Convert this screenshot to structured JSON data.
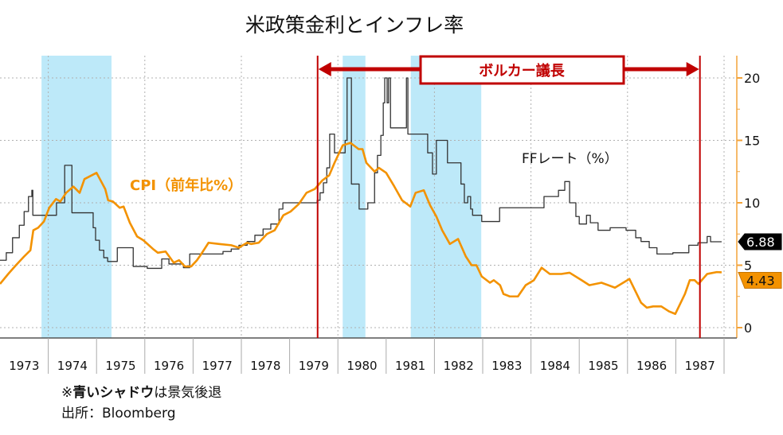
{
  "chart_data": {
    "type": "line",
    "title": "米政策金利とインフレ率",
    "xlabel": "",
    "ylabel": "",
    "xlim": [
      1973,
      1988
    ],
    "ylim": [
      -1,
      22
    ],
    "y_ticks": [
      0,
      5,
      10,
      15,
      20
    ],
    "x_tick_labels": [
      "1973",
      "1974",
      "1975",
      "1976",
      "1977",
      "1978",
      "1979",
      "1980",
      "1981",
      "1982",
      "1983",
      "1984",
      "1985",
      "1986",
      "1987"
    ],
    "y_axis_side": "right",
    "grid": true,
    "colors": {
      "ff": "#333333",
      "cpi": "#f39200",
      "recession": "#bde9f9",
      "volcker": "#c00000",
      "axis": "#f3a33a"
    },
    "recessions": [
      [
        1973.86,
        1975.31
      ],
      [
        1980.1,
        1980.57
      ],
      [
        1981.51,
        1982.97
      ]
    ],
    "volcker": {
      "label": "ボルカー議長",
      "start": 1979.58,
      "end": 1987.5
    },
    "series": [
      {
        "name": "FFレート（%）",
        "style": "step",
        "last_value_label": "6.88",
        "points": [
          [
            1973.0,
            5.4
          ],
          [
            1973.13,
            6.0
          ],
          [
            1973.26,
            7.2
          ],
          [
            1973.4,
            8.2
          ],
          [
            1973.5,
            9.3
          ],
          [
            1973.59,
            10.5
          ],
          [
            1973.66,
            11.0
          ],
          [
            1973.68,
            9.0
          ],
          [
            1974.17,
            10.0
          ],
          [
            1974.34,
            13.0
          ],
          [
            1974.49,
            9.2
          ],
          [
            1974.93,
            8.0
          ],
          [
            1974.98,
            7.0
          ],
          [
            1975.06,
            6.2
          ],
          [
            1975.15,
            5.6
          ],
          [
            1975.23,
            5.3
          ],
          [
            1975.43,
            6.4
          ],
          [
            1975.76,
            4.9
          ],
          [
            1976.05,
            4.75
          ],
          [
            1976.35,
            5.5
          ],
          [
            1976.5,
            5.1
          ],
          [
            1976.8,
            4.8
          ],
          [
            1976.93,
            5.9
          ],
          [
            1977.62,
            6.1
          ],
          [
            1977.79,
            6.3
          ],
          [
            1977.95,
            6.6
          ],
          [
            1978.12,
            6.9
          ],
          [
            1978.28,
            7.4
          ],
          [
            1978.45,
            7.9
          ],
          [
            1978.61,
            8.3
          ],
          [
            1978.78,
            9.5
          ],
          [
            1978.86,
            10.0
          ],
          [
            1979.57,
            10.2
          ],
          [
            1979.63,
            10.8
          ],
          [
            1979.7,
            11.6
          ],
          [
            1979.77,
            12.8
          ],
          [
            1979.83,
            15.5
          ],
          [
            1979.93,
            14.0
          ],
          [
            1980.15,
            15.0
          ],
          [
            1980.19,
            20.0
          ],
          [
            1980.28,
            11.5
          ],
          [
            1980.44,
            9.5
          ],
          [
            1980.62,
            10.0
          ],
          [
            1980.76,
            12.4
          ],
          [
            1980.82,
            13.8
          ],
          [
            1980.89,
            15.4
          ],
          [
            1980.94,
            18.0
          ],
          [
            1980.97,
            20.0
          ],
          [
            1981.02,
            18.0
          ],
          [
            1981.05,
            20.0
          ],
          [
            1981.09,
            16.0
          ],
          [
            1981.42,
            20.0
          ],
          [
            1981.45,
            15.5
          ],
          [
            1981.86,
            14.0
          ],
          [
            1981.96,
            12.3
          ],
          [
            1982.04,
            15.0
          ],
          [
            1982.27,
            13.2
          ],
          [
            1982.55,
            11.5
          ],
          [
            1982.62,
            10.0
          ],
          [
            1982.69,
            10.5
          ],
          [
            1982.75,
            9.5
          ],
          [
            1982.79,
            9.0
          ],
          [
            1982.98,
            8.5
          ],
          [
            1983.35,
            9.6
          ],
          [
            1984.27,
            10.5
          ],
          [
            1984.57,
            11.0
          ],
          [
            1984.7,
            11.7
          ],
          [
            1984.8,
            10.0
          ],
          [
            1984.93,
            8.9
          ],
          [
            1985.0,
            8.3
          ],
          [
            1985.15,
            9.0
          ],
          [
            1985.23,
            8.4
          ],
          [
            1985.39,
            7.8
          ],
          [
            1985.64,
            8.0
          ],
          [
            1985.97,
            7.8
          ],
          [
            1986.17,
            7.2
          ],
          [
            1986.28,
            6.9
          ],
          [
            1986.45,
            6.4
          ],
          [
            1986.61,
            5.9
          ],
          [
            1986.94,
            6.0
          ],
          [
            1987.27,
            6.6
          ],
          [
            1987.46,
            6.8
          ],
          [
            1987.65,
            7.3
          ],
          [
            1987.72,
            6.88
          ],
          [
            1987.95,
            6.88
          ]
        ]
      },
      {
        "name": "CPI（前年比%）",
        "style": "line",
        "last_value_label": "4.43",
        "points": [
          [
            1973.0,
            3.5
          ],
          [
            1973.17,
            4.3
          ],
          [
            1973.33,
            5.0
          ],
          [
            1973.5,
            5.7
          ],
          [
            1973.63,
            6.2
          ],
          [
            1973.69,
            7.8
          ],
          [
            1973.79,
            8.0
          ],
          [
            1973.91,
            8.5
          ],
          [
            1974.02,
            9.6
          ],
          [
            1974.16,
            10.3
          ],
          [
            1974.25,
            10.1
          ],
          [
            1974.37,
            10.8
          ],
          [
            1974.52,
            11.3
          ],
          [
            1974.65,
            10.8
          ],
          [
            1974.75,
            11.9
          ],
          [
            1975.0,
            12.4
          ],
          [
            1975.18,
            11.1
          ],
          [
            1975.24,
            10.2
          ],
          [
            1975.34,
            10.1
          ],
          [
            1975.48,
            9.6
          ],
          [
            1975.56,
            9.7
          ],
          [
            1975.69,
            8.4
          ],
          [
            1975.84,
            7.3
          ],
          [
            1975.97,
            7.0
          ],
          [
            1976.17,
            6.3
          ],
          [
            1976.27,
            6.0
          ],
          [
            1976.43,
            6.1
          ],
          [
            1976.6,
            5.2
          ],
          [
            1976.71,
            5.4
          ],
          [
            1976.83,
            4.9
          ],
          [
            1976.96,
            4.9
          ],
          [
            1977.08,
            5.4
          ],
          [
            1977.17,
            5.9
          ],
          [
            1977.32,
            6.8
          ],
          [
            1977.54,
            6.7
          ],
          [
            1977.79,
            6.6
          ],
          [
            1977.95,
            6.4
          ],
          [
            1978.03,
            6.6
          ],
          [
            1978.12,
            6.8
          ],
          [
            1978.2,
            6.7
          ],
          [
            1978.36,
            6.8
          ],
          [
            1978.53,
            7.5
          ],
          [
            1978.69,
            7.8
          ],
          [
            1978.87,
            9.0
          ],
          [
            1979.02,
            9.3
          ],
          [
            1979.19,
            9.9
          ],
          [
            1979.35,
            10.8
          ],
          [
            1979.52,
            11.1
          ],
          [
            1979.68,
            11.8
          ],
          [
            1979.82,
            12.2
          ],
          [
            1979.93,
            13.2
          ],
          [
            1980.1,
            14.6
          ],
          [
            1980.26,
            14.8
          ],
          [
            1980.43,
            14.3
          ],
          [
            1980.51,
            14.3
          ],
          [
            1980.59,
            13.2
          ],
          [
            1980.76,
            12.5
          ],
          [
            1980.85,
            12.8
          ],
          [
            1981.0,
            12.4
          ],
          [
            1981.17,
            11.3
          ],
          [
            1981.33,
            10.2
          ],
          [
            1981.5,
            9.7
          ],
          [
            1981.61,
            10.8
          ],
          [
            1981.78,
            11.0
          ],
          [
            1981.91,
            9.8
          ],
          [
            1982.04,
            8.9
          ],
          [
            1982.16,
            7.8
          ],
          [
            1982.32,
            6.7
          ],
          [
            1982.49,
            7.1
          ],
          [
            1982.65,
            5.7
          ],
          [
            1982.77,
            5.0
          ],
          [
            1982.87,
            5.0
          ],
          [
            1982.98,
            4.1
          ],
          [
            1983.15,
            3.6
          ],
          [
            1983.23,
            3.8
          ],
          [
            1983.36,
            3.4
          ],
          [
            1983.43,
            2.7
          ],
          [
            1983.56,
            2.5
          ],
          [
            1983.73,
            2.5
          ],
          [
            1983.89,
            3.4
          ],
          [
            1984.06,
            3.8
          ],
          [
            1984.22,
            4.8
          ],
          [
            1984.39,
            4.3
          ],
          [
            1984.63,
            4.3
          ],
          [
            1984.8,
            4.4
          ],
          [
            1985.05,
            3.8
          ],
          [
            1985.21,
            3.4
          ],
          [
            1985.46,
            3.6
          ],
          [
            1985.74,
            3.2
          ],
          [
            1986.04,
            3.9
          ],
          [
            1986.28,
            2.0
          ],
          [
            1986.4,
            1.6
          ],
          [
            1986.53,
            1.7
          ],
          [
            1986.7,
            1.7
          ],
          [
            1986.86,
            1.3
          ],
          [
            1986.99,
            1.1
          ],
          [
            1987.19,
            2.7
          ],
          [
            1987.29,
            3.8
          ],
          [
            1987.39,
            3.8
          ],
          [
            1987.47,
            3.5
          ],
          [
            1987.65,
            4.3
          ],
          [
            1987.85,
            4.45
          ],
          [
            1987.95,
            4.43
          ]
        ]
      }
    ]
  },
  "notes": {
    "mark": "※",
    "shadow_bold": "青いシャドウ",
    "shadow_rest": "は景気後退",
    "source": "出所：Bloomberg"
  }
}
